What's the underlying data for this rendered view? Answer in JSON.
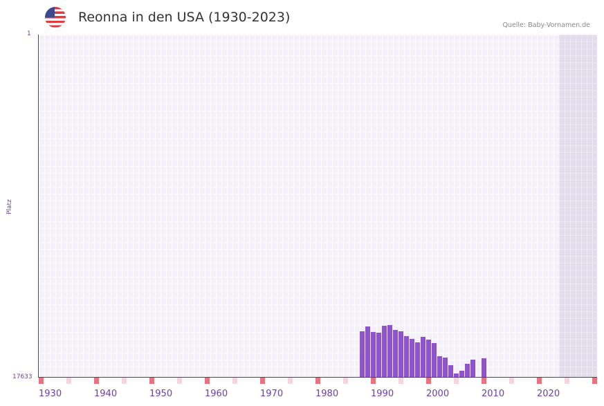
{
  "header": {
    "flag_icon": "us-flag-icon",
    "title": "Reonna in den USA (1930-2023)",
    "source": "Quelle: Baby-Vornamen.de"
  },
  "colors": {
    "bar": "#8c55c8",
    "axis": "#6a2a90",
    "decade_tick": "#e57380",
    "half_decade_tick": "#f3d6de",
    "plot_bg": "#f3f0fb"
  },
  "chart_data": {
    "type": "bar",
    "title": "Reonna in den USA (1930-2023)",
    "xlabel": "",
    "ylabel": "Platz",
    "ylim": [
      17633,
      1
    ],
    "y_inverted": true,
    "y_ticks": [
      "1",
      "17633"
    ],
    "x_ticks": [
      "1930",
      "1940",
      "1950",
      "1960",
      "1970",
      "1980",
      "1990",
      "2000",
      "2010",
      "2020"
    ],
    "x_range": [
      1930,
      2030
    ],
    "grid": true,
    "legend": null,
    "categories": [
      1988,
      1989,
      1990,
      1991,
      1992,
      1993,
      1994,
      1995,
      1996,
      1997,
      1998,
      1999,
      2000,
      2001,
      2002,
      2003,
      2004,
      2005,
      2006,
      2007,
      2008,
      2010
    ],
    "values": [
      15282,
      15033,
      15318,
      15353,
      14997,
      14962,
      15211,
      15282,
      15532,
      15674,
      15852,
      15567,
      15710,
      15888,
      16565,
      16636,
      17028,
      17455,
      17313,
      16957,
      16743,
      16672
    ]
  },
  "axis": {
    "y_top_label": "1",
    "y_bottom_label": "17633",
    "y_title": "Platz",
    "x_labels": [
      "1930",
      "1940",
      "1950",
      "1960",
      "1970",
      "1980",
      "1990",
      "2000",
      "2010",
      "2020"
    ]
  }
}
